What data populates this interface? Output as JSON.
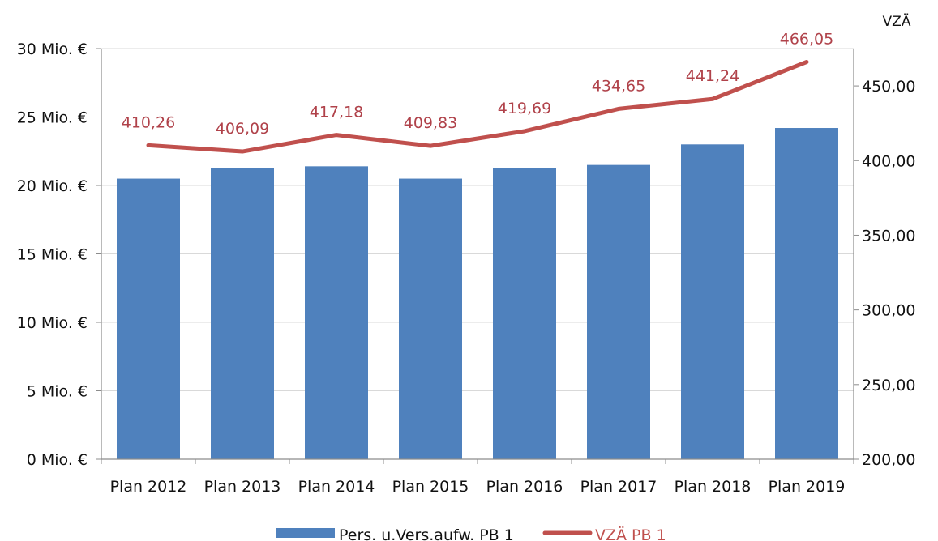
{
  "chart_data": {
    "type": "bar",
    "categories": [
      "Plan 2012",
      "Plan 2013",
      "Plan 2014",
      "Plan 2015",
      "Plan 2016",
      "Plan 2017",
      "Plan 2018",
      "Plan 2019"
    ],
    "series": [
      {
        "name": "Pers. u.Vers.aufw. PB 1",
        "type": "bar",
        "axis": "left",
        "color": "#4f81bd",
        "values": [
          20.5,
          21.3,
          21.4,
          20.5,
          21.3,
          21.5,
          23.0,
          24.2
        ]
      },
      {
        "name": "VZÄ PB 1",
        "type": "line",
        "axis": "right",
        "color": "#c0504d",
        "values": [
          410.26,
          406.09,
          417.18,
          409.83,
          419.69,
          434.65,
          441.24,
          466.05
        ],
        "labels": [
          "410,26",
          "406,09",
          "417,18",
          "409,83",
          "419,69",
          "434,65",
          "441,24",
          "466,05"
        ]
      }
    ],
    "left_axis": {
      "range": [
        0,
        30
      ],
      "ticks": [
        0,
        5,
        10,
        15,
        20,
        25,
        30
      ],
      "tick_labels": [
        "0 Mio. €",
        "5 Mio. €",
        "10 Mio. €",
        "15 Mio. €",
        "20 Mio. €",
        "25 Mio. €",
        "30 Mio. €"
      ]
    },
    "right_axis": {
      "title": "VZÄ",
      "range": [
        200,
        475
      ],
      "ticks": [
        200,
        250,
        300,
        350,
        400,
        450
      ],
      "tick_labels": [
        "200,00",
        "250,00",
        "300,00",
        "350,00",
        "400,00",
        "450,00"
      ]
    },
    "grid": true,
    "legend_position": "bottom"
  }
}
